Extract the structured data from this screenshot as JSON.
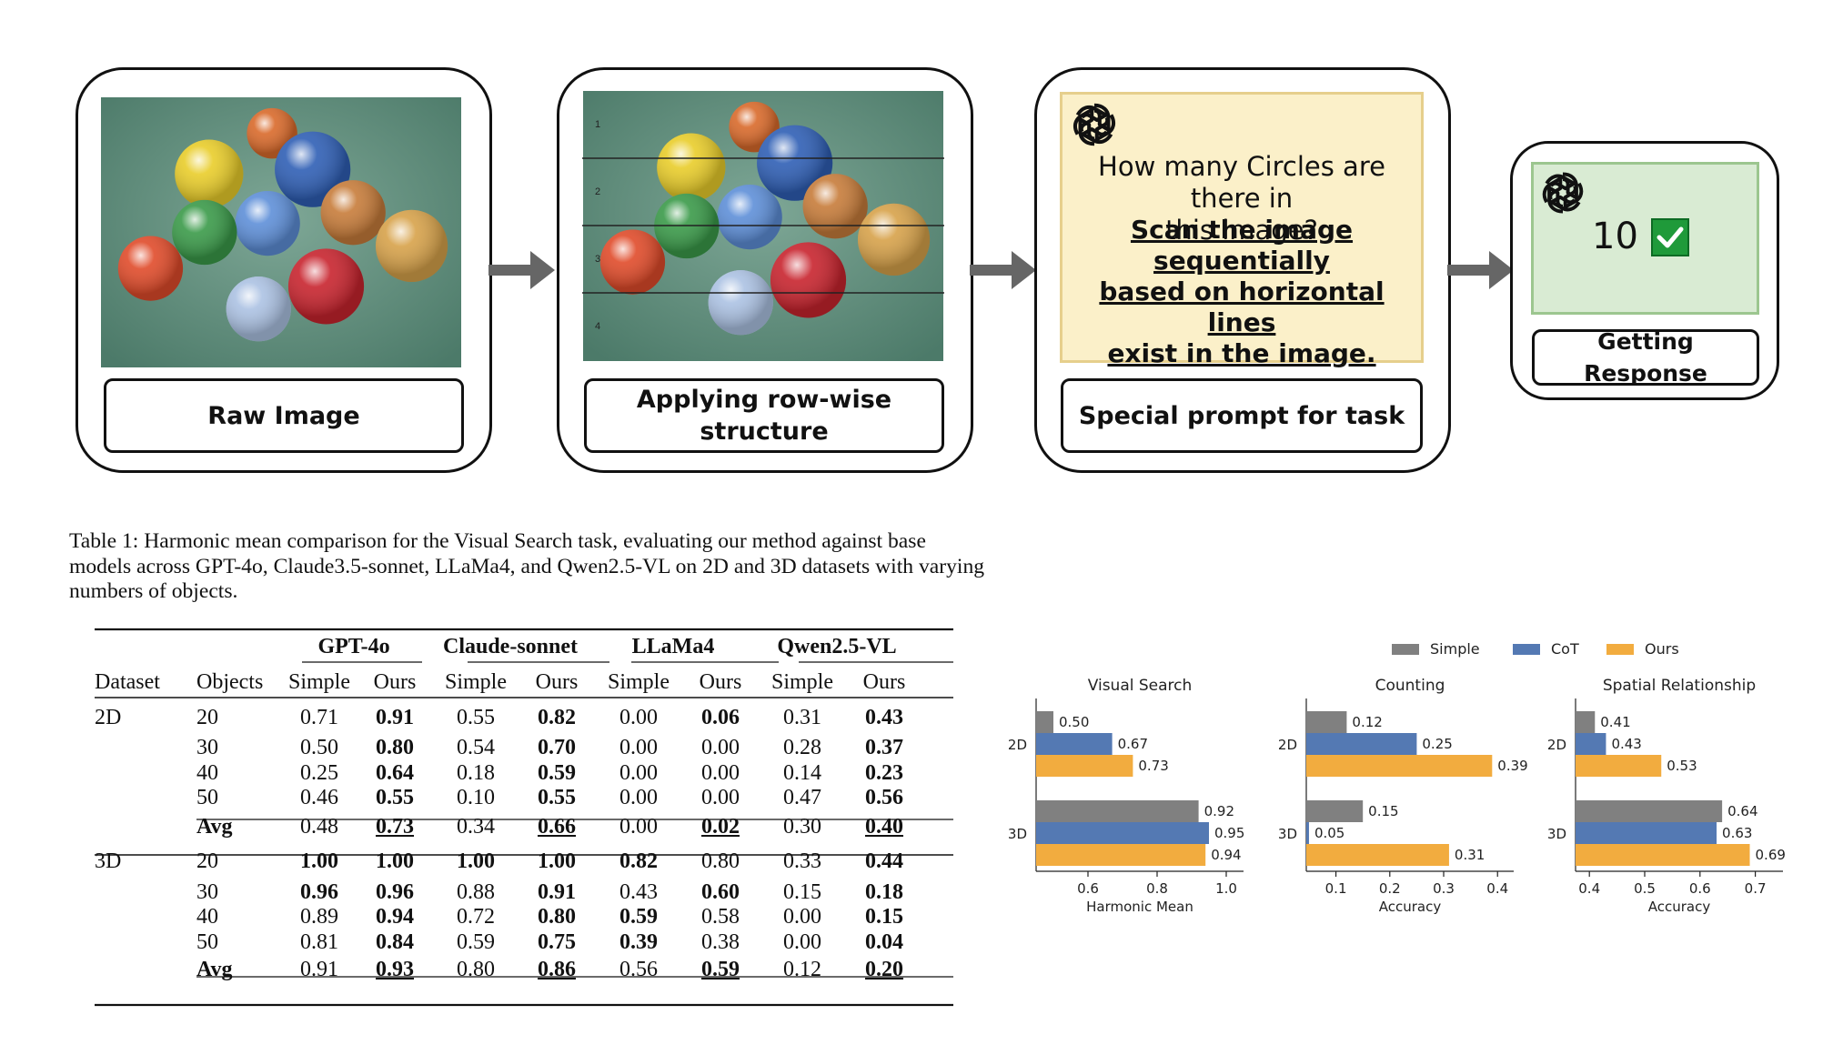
{
  "pipeline": {
    "raw_label": "Raw Image",
    "row_label_line1": "Applying row-wise",
    "row_label_line2": "structure",
    "row_numbers": [
      "1",
      "2",
      "3",
      "4"
    ],
    "prompt_label": "Special prompt for task",
    "prompt_question_line1": "How many Circles are there in",
    "prompt_question_line2": "this image?",
    "prompt_hint_line1": "Scan the image sequentially",
    "prompt_hint_line2": "based on horizontal lines",
    "prompt_hint_line3": "exist in the image.",
    "response_value": "10",
    "response_label": "Getting Response",
    "icons": [
      "openai-logo-icon",
      "check-icon",
      "arrow-right-icon"
    ],
    "colors": {
      "prompt_bg": "#fbf0c9",
      "response_bg": "#d9ebd3",
      "check": "#1f9a3a",
      "table_bg": "#5d8a78"
    }
  },
  "caption": "Table 1: Harmonic mean comparison for the Visual Search task, evaluating our method against base models across GPT-4o, Claude3.5-sonnet, LLaMa4, and Qwen2.5-VL on 2D and 3D datasets with varying numbers of objects.",
  "table": {
    "model_headers": [
      "GPT-4o",
      "Claude-sonnet",
      "LLaMa4",
      "Qwen2.5-VL"
    ],
    "sub_headers": [
      "Dataset",
      "Objects",
      "Simple",
      "Ours",
      "Simple",
      "Ours",
      "Simple",
      "Ours",
      "Simple",
      "Ours"
    ],
    "rows": [
      [
        "2D",
        "20",
        "0.71",
        "0.91",
        "0.55",
        "0.82",
        "0.00",
        "0.06",
        "0.31",
        "0.43"
      ],
      [
        "",
        "30",
        "0.50",
        "0.80",
        "0.54",
        "0.70",
        "0.00",
        "0.00",
        "0.28",
        "0.37"
      ],
      [
        "",
        "40",
        "0.25",
        "0.64",
        "0.18",
        "0.59",
        "0.00",
        "0.00",
        "0.14",
        "0.23"
      ],
      [
        "",
        "50",
        "0.46",
        "0.55",
        "0.10",
        "0.55",
        "0.00",
        "0.00",
        "0.47",
        "0.56"
      ],
      [
        "",
        "Avg",
        "0.48",
        "0.73",
        "0.34",
        "0.66",
        "0.00",
        "0.02",
        "0.30",
        "0.40"
      ],
      [
        "3D",
        "20",
        "1.00",
        "1.00",
        "1.00",
        "1.00",
        "0.82",
        "0.80",
        "0.33",
        "0.44"
      ],
      [
        "",
        "30",
        "0.96",
        "0.96",
        "0.88",
        "0.91",
        "0.43",
        "0.60",
        "0.15",
        "0.18"
      ],
      [
        "",
        "40",
        "0.89",
        "0.94",
        "0.72",
        "0.80",
        "0.59",
        "0.58",
        "0.00",
        "0.15"
      ],
      [
        "",
        "50",
        "0.81",
        "0.84",
        "0.59",
        "0.75",
        "0.39",
        "0.38",
        "0.00",
        "0.04"
      ],
      [
        "",
        "Avg",
        "0.91",
        "0.93",
        "0.80",
        "0.86",
        "0.56",
        "0.59",
        "0.12",
        "0.20"
      ]
    ],
    "bold": [
      [
        0,
        3
      ],
      [
        0,
        5
      ],
      [
        0,
        7
      ],
      [
        0,
        9
      ],
      [
        1,
        3
      ],
      [
        1,
        5
      ],
      [
        1,
        9
      ],
      [
        2,
        3
      ],
      [
        2,
        5
      ],
      [
        2,
        9
      ],
      [
        3,
        3
      ],
      [
        3,
        5
      ],
      [
        3,
        9
      ],
      [
        4,
        1
      ],
      [
        4,
        3
      ],
      [
        4,
        5
      ],
      [
        4,
        7
      ],
      [
        4,
        9
      ],
      [
        5,
        2
      ],
      [
        5,
        3
      ],
      [
        5,
        4
      ],
      [
        5,
        5
      ],
      [
        5,
        6
      ],
      [
        5,
        9
      ],
      [
        6,
        2
      ],
      [
        6,
        3
      ],
      [
        6,
        5
      ],
      [
        6,
        7
      ],
      [
        6,
        9
      ],
      [
        7,
        3
      ],
      [
        7,
        5
      ],
      [
        7,
        6
      ],
      [
        7,
        9
      ],
      [
        8,
        3
      ],
      [
        8,
        5
      ],
      [
        8,
        6
      ],
      [
        8,
        9
      ],
      [
        9,
        1
      ],
      [
        9,
        3
      ],
      [
        9,
        5
      ],
      [
        9,
        7
      ],
      [
        9,
        9
      ]
    ],
    "underline": [
      [
        4,
        3
      ],
      [
        4,
        5
      ],
      [
        4,
        7
      ],
      [
        4,
        9
      ],
      [
        9,
        3
      ],
      [
        9,
        5
      ],
      [
        9,
        7
      ],
      [
        9,
        9
      ]
    ]
  },
  "chart_data": [
    {
      "type": "bar",
      "title": "Visual Search",
      "xlabel": "Harmonic Mean",
      "categories": [
        "2D",
        "3D"
      ],
      "series": [
        {
          "name": "Simple",
          "values": [
            0.5,
            0.92
          ]
        },
        {
          "name": "CoT",
          "values": [
            0.67,
            0.95
          ]
        },
        {
          "name": "Ours",
          "values": [
            0.73,
            0.94
          ]
        }
      ],
      "xlim": [
        0.45,
        1.05
      ],
      "ticks": [
        0.6,
        0.8,
        1.0
      ],
      "tick_labels": [
        "0.6",
        "0.8",
        "1.0"
      ],
      "orientation": "horizontal",
      "legend": "top"
    },
    {
      "type": "bar",
      "title": "Counting",
      "xlabel": "Accuracy",
      "categories": [
        "2D",
        "3D"
      ],
      "series": [
        {
          "name": "Simple",
          "values": [
            0.12,
            0.15
          ]
        },
        {
          "name": "CoT",
          "values": [
            0.25,
            0.05
          ]
        },
        {
          "name": "Ours",
          "values": [
            0.39,
            0.31
          ]
        }
      ],
      "xlim": [
        0.045,
        0.43
      ],
      "ticks": [
        0.1,
        0.2,
        0.3,
        0.4
      ],
      "tick_labels": [
        "0.1",
        "0.2",
        "0.3",
        "0.4"
      ],
      "orientation": "horizontal"
    },
    {
      "type": "bar",
      "title": "Spatial Relationship",
      "xlabel": "Accuracy",
      "categories": [
        "2D",
        "3D"
      ],
      "series": [
        {
          "name": "Simple",
          "values": [
            0.41,
            0.64
          ]
        },
        {
          "name": "CoT",
          "values": [
            0.43,
            0.63
          ]
        },
        {
          "name": "Ours",
          "values": [
            0.53,
            0.69
          ]
        }
      ],
      "xlim": [
        0.375,
        0.75
      ],
      "ticks": [
        0.4,
        0.5,
        0.6,
        0.7
      ],
      "tick_labels": [
        "0.4",
        "0.5",
        "0.6",
        "0.7"
      ],
      "orientation": "horizontal"
    }
  ],
  "legend": {
    "items": [
      {
        "name": "Simple",
        "color": "#808080"
      },
      {
        "name": "CoT",
        "color": "#5479b3"
      },
      {
        "name": "Ours",
        "color": "#f2ac3f"
      }
    ]
  }
}
